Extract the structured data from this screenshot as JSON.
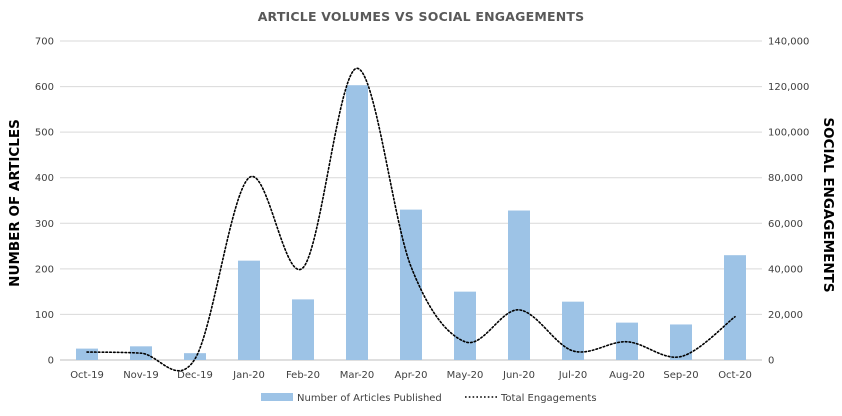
{
  "chart_data": {
    "type": "bar+line",
    "title": "ARTICLE VOLUMES VS SOCIAL ENGAGEMENTS",
    "categories": [
      "Oct-19",
      "Nov-19",
      "Dec-19",
      "Jan-20",
      "Feb-20",
      "Mar-20",
      "Apr-20",
      "May-20",
      "Jun-20",
      "Jul-20",
      "Aug-20",
      "Sep-20",
      "Oct-20"
    ],
    "series": [
      {
        "name": "Number of Articles Published",
        "kind": "bar",
        "axis": "left",
        "color": "#9DC3E6",
        "values": [
          25,
          30,
          15,
          218,
          133,
          603,
          330,
          150,
          328,
          128,
          82,
          78,
          230
        ]
      },
      {
        "name": "Total Engagements",
        "kind": "line",
        "style": "dotted",
        "axis": "right",
        "color": "#000000",
        "values": [
          3500,
          3000,
          500,
          80000,
          40500,
          128000,
          41000,
          8000,
          22000,
          4000,
          8000,
          1500,
          19000
        ]
      }
    ],
    "ylabel": "NUMBER OF ARTICLES",
    "y2label": "SOCIAL ENGAGEMENTS",
    "ylim": [
      0,
      700
    ],
    "y2lim": [
      0,
      140000
    ],
    "yticks": [
      "0",
      "100",
      "200",
      "300",
      "400",
      "500",
      "600",
      "700"
    ],
    "y2ticks": [
      "0",
      "20,000",
      "40,000",
      "60,000",
      "80,000",
      "100,000",
      "120,000",
      "140,000"
    ],
    "grid": true,
    "legend_position": "bottom"
  }
}
